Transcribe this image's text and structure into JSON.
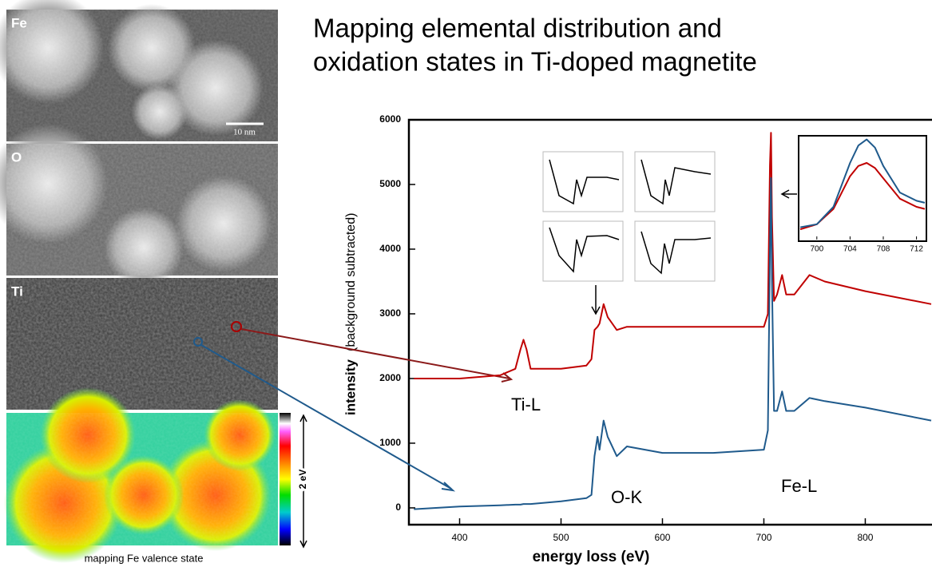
{
  "chart_data": {
    "type": "line",
    "title": [
      "Mapping elemental distribution and",
      "oxidation states in Ti-doped magnetite"
    ],
    "maps": {
      "labels": [
        "Fe",
        "O",
        "Ti"
      ],
      "scale_bar": "10 nm",
      "colorbar_label": "2 eV",
      "caption": "mapping Fe valence state"
    },
    "xlabel": "energy loss (eV)",
    "ylabel": {
      "main": "intensity",
      "note": "(background subtracted)"
    },
    "annotations": [
      "Ti-L",
      "O-K",
      "Fe-L"
    ],
    "xlim": [
      350,
      865
    ],
    "ylim": [
      -260,
      6000
    ],
    "xticks": [
      400,
      500,
      600,
      700,
      800
    ],
    "yticks": [
      0,
      1000,
      2000,
      3000,
      4000,
      5000,
      6000
    ],
    "x": [
      355,
      400,
      440,
      455,
      460,
      463,
      466,
      470,
      500,
      525,
      530,
      533,
      536,
      538,
      542,
      546,
      555,
      565,
      600,
      650,
      700,
      704,
      706,
      707,
      708,
      710,
      713,
      718,
      722,
      730,
      745,
      760,
      800,
      865
    ],
    "series": [
      {
        "color": "#c00000",
        "values": [
          2000,
          2000,
          2050,
          2150,
          2450,
          2600,
          2450,
          2150,
          2150,
          2200,
          2300,
          2750,
          2800,
          2850,
          3150,
          2950,
          2750,
          2800,
          2800,
          2800,
          2800,
          3000,
          5300,
          5800,
          4500,
          3200,
          3300,
          3600,
          3300,
          3300,
          3600,
          3500,
          3350,
          3150
        ]
      },
      {
        "color": "#1f5a8c",
        "values": [
          -20,
          20,
          40,
          50,
          50,
          60,
          60,
          60,
          100,
          150,
          200,
          800,
          1100,
          900,
          1350,
          1100,
          800,
          950,
          850,
          850,
          900,
          1200,
          4000,
          5100,
          3500,
          1500,
          1500,
          1800,
          1500,
          1500,
          1700,
          1650,
          1550,
          1350
        ]
      }
    ],
    "inset": {
      "xlim": [
        698,
        713
      ],
      "ylim": [
        0,
        1
      ],
      "xticks": [
        700,
        704,
        708,
        712
      ],
      "x": [
        698,
        700,
        702,
        704,
        705,
        706,
        707,
        708,
        710,
        712,
        713
      ],
      "series": [
        {
          "color": "#c00000",
          "values": [
            0.1,
            0.15,
            0.3,
            0.62,
            0.72,
            0.75,
            0.7,
            0.6,
            0.4,
            0.32,
            0.3
          ]
        },
        {
          "color": "#1f5a8c",
          "values": [
            0.12,
            0.15,
            0.32,
            0.75,
            0.92,
            0.98,
            0.9,
            0.72,
            0.46,
            0.38,
            0.36
          ]
        }
      ]
    }
  }
}
